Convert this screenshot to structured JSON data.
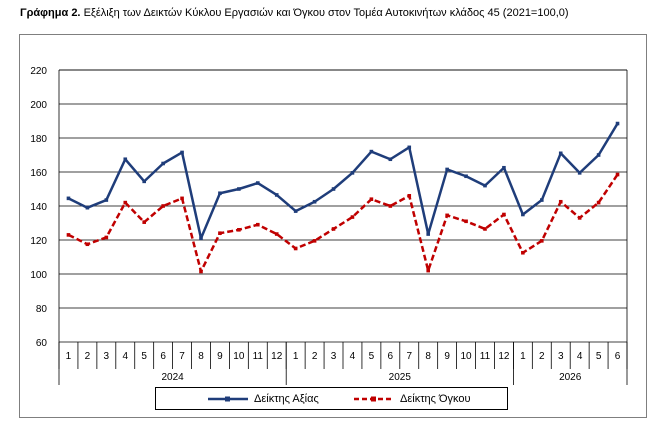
{
  "title": {
    "prefix": "Γράφημα 2.",
    "text": "Εξέλιξη των Δεικτών Κύκλου Εργασιών και Όγκου στον Τομέα Αυτοκινήτων κλάδος 45 (2021=100,0)"
  },
  "chart_data": {
    "type": "line",
    "title": "Εξέλιξη των Δεικτών Κύκλου Εργασιών και Όγκου στον Τομέα Αυτοκινήτων κλάδος 45 (2021=100,0)",
    "categories": [
      "1",
      "2",
      "3",
      "4",
      "5",
      "6",
      "7",
      "8",
      "9",
      "10",
      "11",
      "12",
      "1",
      "2",
      "3",
      "4",
      "5",
      "6",
      "7",
      "8",
      "9",
      "10",
      "11",
      "12",
      "1",
      "2",
      "3",
      "4",
      "5",
      "6"
    ],
    "groups": [
      {
        "label": "2024",
        "count": 12
      },
      {
        "label": "2025",
        "count": 12
      },
      {
        "label": "2026",
        "count": 6
      }
    ],
    "yticks": [
      "60",
      "80",
      "100",
      "120",
      "140",
      "160",
      "180",
      "200",
      "220"
    ],
    "ylim": [
      60,
      220
    ],
    "grid": true,
    "legend_position": "bottom",
    "series": [
      {
        "name": "Δείκτης Αξίας",
        "color": "#1f3d7a",
        "style": "solid",
        "values": [
          144.5,
          139,
          143.5,
          167.5,
          154.5,
          165,
          171.5,
          121,
          147.5,
          150,
          153.5,
          146.5,
          137,
          142.5,
          150,
          159.5,
          172,
          167.5,
          174.5,
          123.5,
          161.5,
          157.5,
          152,
          162.5,
          135,
          143.5,
          171,
          159.5,
          170,
          188.5
        ]
      },
      {
        "name": "Δείκτης Όγκου",
        "color": "#c00000",
        "style": "dashed",
        "values": [
          123,
          117.5,
          121.5,
          142,
          130.5,
          140,
          144.5,
          101.5,
          124,
          126,
          129,
          123.5,
          115,
          119.5,
          126.5,
          133.5,
          144,
          140,
          146,
          102,
          134.5,
          131,
          126.5,
          135,
          112.5,
          119.5,
          142.5,
          133,
          142,
          158.5
        ]
      }
    ]
  }
}
